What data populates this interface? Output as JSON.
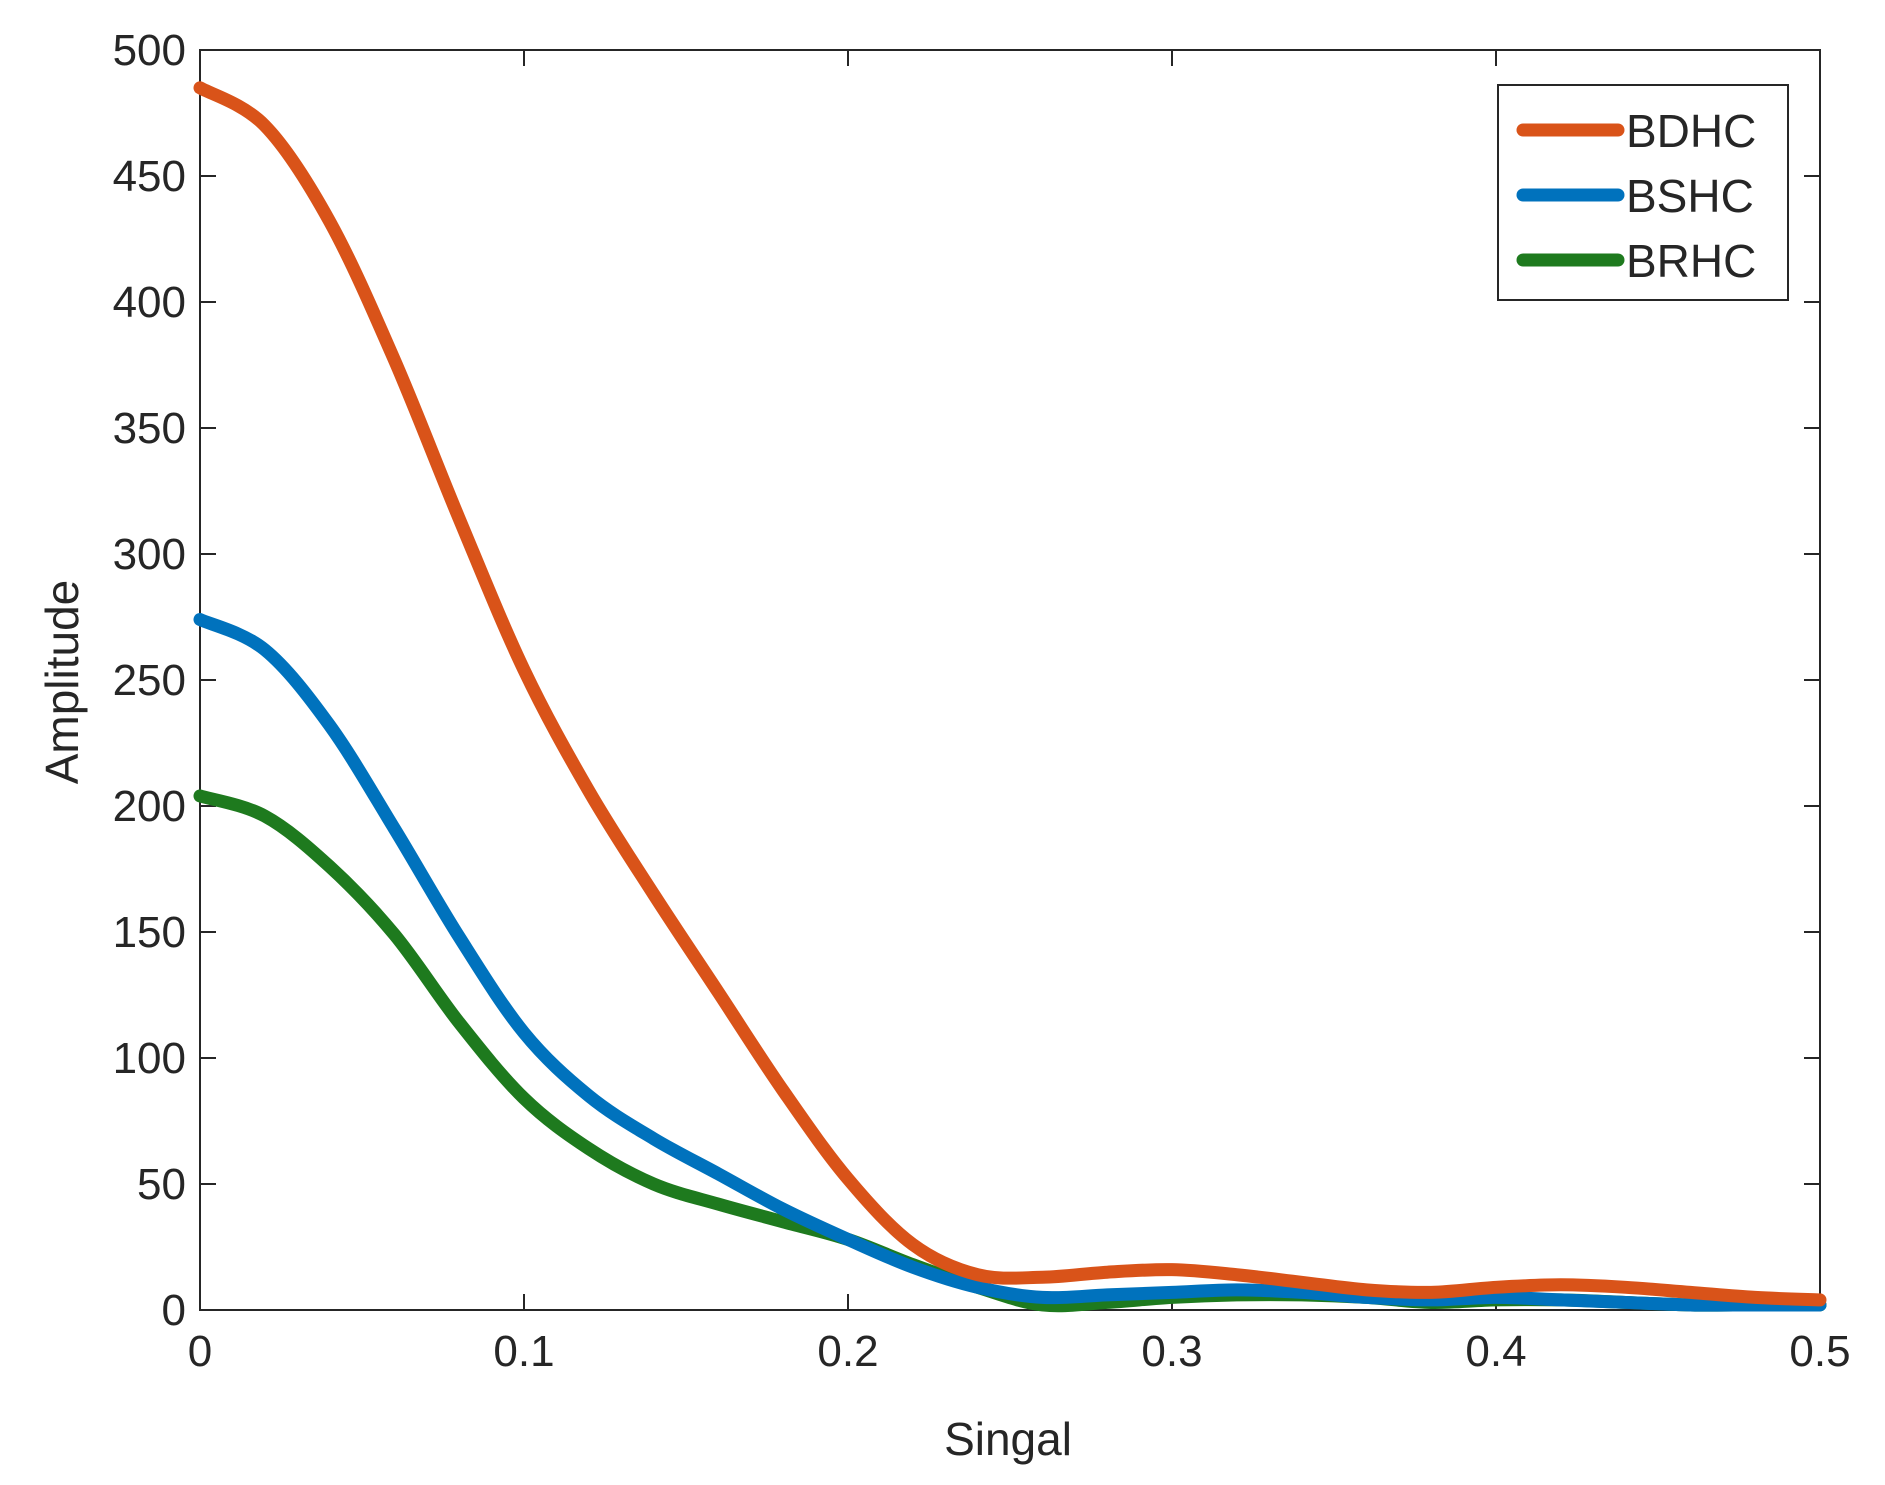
{
  "chart_data": {
    "type": "line",
    "title": "",
    "xlabel": "Singal",
    "ylabel": "Amplitude",
    "xlim": [
      0,
      0.5
    ],
    "ylim": [
      0,
      500
    ],
    "xticks": [
      0,
      0.1,
      0.2,
      0.3,
      0.4,
      0.5
    ],
    "xtick_labels": [
      "0",
      "0.1",
      "0.2",
      "0.3",
      "0.4",
      "0.5"
    ],
    "yticks": [
      0,
      50,
      100,
      150,
      200,
      250,
      300,
      350,
      400,
      450,
      500
    ],
    "ytick_labels": [
      "0",
      "50",
      "100",
      "150",
      "200",
      "250",
      "300",
      "350",
      "400",
      "450",
      "500"
    ],
    "grid": false,
    "legend_position": "top-right",
    "x": [
      0,
      0.02,
      0.04,
      0.06,
      0.08,
      0.1,
      0.12,
      0.14,
      0.16,
      0.18,
      0.2,
      0.22,
      0.24,
      0.26,
      0.28,
      0.3,
      0.32,
      0.34,
      0.36,
      0.38,
      0.4,
      0.42,
      0.44,
      0.46,
      0.48,
      0.5
    ],
    "series": [
      {
        "name": "BDHC",
        "color": "#D95319",
        "values": [
          485,
          470,
          432,
          377,
          314,
          254,
          206,
          165,
          126,
          87,
          52,
          26,
          14,
          13,
          15,
          16,
          14,
          11,
          8,
          7,
          9,
          10,
          9,
          7,
          5,
          4
        ]
      },
      {
        "name": "BSHC",
        "color": "#0072BD",
        "values": [
          274,
          262,
          232,
          191,
          148,
          110,
          85,
          68,
          54,
          40,
          28,
          17,
          9,
          5,
          6,
          7,
          8,
          7,
          5,
          4,
          5,
          4,
          3,
          2,
          2,
          2
        ]
      },
      {
        "name": "BRHC",
        "color": "#1E7A1E",
        "values": [
          204,
          196,
          176,
          149,
          114,
          84,
          64,
          50,
          42,
          35,
          28,
          18,
          9,
          2,
          3,
          5,
          6,
          6,
          5,
          3,
          4,
          4,
          3,
          2,
          2,
          2
        ]
      }
    ]
  }
}
